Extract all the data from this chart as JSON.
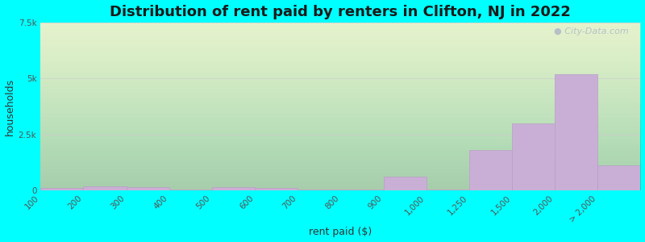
{
  "title": "Distribution of rent paid by renters in Clifton, NJ in 2022",
  "xlabel": "rent paid ($)",
  "ylabel": "households",
  "categories": [
    "100",
    "200",
    "300",
    "400",
    "500",
    "600",
    "700",
    "800",
    "900",
    "1,000",
    "1,250",
    "1,500",
    "2,000",
    "> 2,000"
  ],
  "values": [
    120,
    180,
    160,
    50,
    130,
    120,
    30,
    50,
    600,
    30,
    1800,
    3000,
    5200,
    1100
  ],
  "bar_color": "#c9afd5",
  "bar_edge_color": "#b89ec8",
  "background_color": "#00ffff",
  "grid_color": "#cccccc",
  "title_fontsize": 13,
  "axis_label_fontsize": 9,
  "tick_fontsize": 7.5,
  "ylim": [
    0,
    7500
  ],
  "yticks": [
    0,
    2500,
    5000,
    7500
  ],
  "ytick_labels": [
    "0",
    "2.5k",
    "5k",
    "7.5k"
  ],
  "watermark_text": "City-Data.com",
  "plot_bg_color": "#eef5e4"
}
